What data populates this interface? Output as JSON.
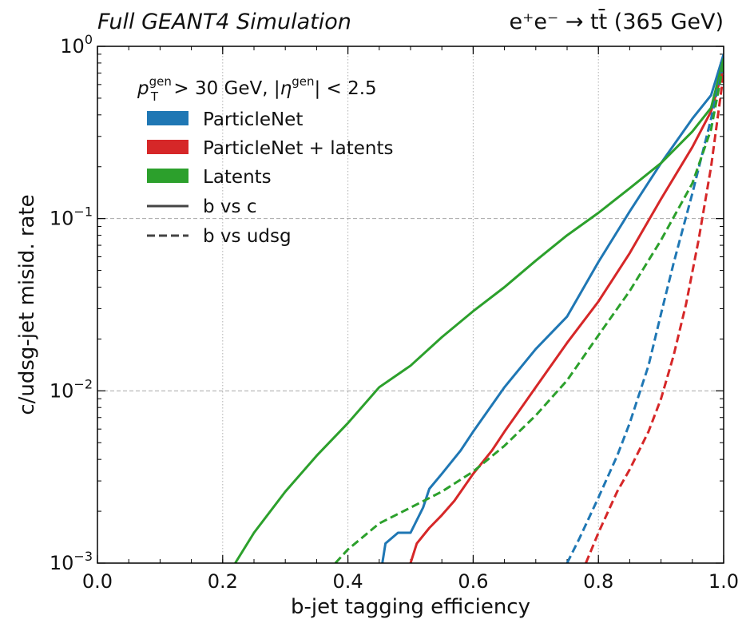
{
  "header": {
    "simulation": "Full GEANT4 Simulation",
    "process": "e⁺e⁻ → tt̄ (365 GeV)"
  },
  "chart_data": {
    "type": "line",
    "xlabel": "b-jet tagging efficiency",
    "ylabel": "c/udsg-jet misid. rate",
    "xlim": [
      0.0,
      1.0
    ],
    "ylim": [
      0.001,
      1.0
    ],
    "yscale": "log",
    "xticks": [
      "0.0",
      "0.2",
      "0.4",
      "0.6",
      "0.8",
      "1.0"
    ],
    "yticks": [
      {
        "value": 0.001,
        "base": "10",
        "exp": "−3"
      },
      {
        "value": 0.01,
        "base": "10",
        "exp": "−2"
      },
      {
        "value": 0.1,
        "base": "10",
        "exp": "−1"
      },
      {
        "value": 1,
        "base": "10",
        "exp": "0"
      }
    ],
    "grid": true,
    "legend": {
      "placement": "top-left",
      "cut_label": "p_T^gen > 30 GeV, |η^gen| < 2.5",
      "models": [
        {
          "name": "ParticleNet",
          "color": "#1f77b4"
        },
        {
          "name": "ParticleNet + latents",
          "color": "#d62728"
        },
        {
          "name": "Latents",
          "color": "#2ca02c"
        }
      ],
      "styles": [
        {
          "name": "b vs c",
          "dash": "solid"
        },
        {
          "name": "b vs udsg",
          "dash": "dashed"
        }
      ]
    },
    "series": [
      {
        "name": "ParticleNet b vs c",
        "color": "#1f77b4",
        "dash": "solid",
        "x": [
          0.455,
          0.46,
          0.48,
          0.5,
          0.52,
          0.53,
          0.55,
          0.58,
          0.6,
          0.65,
          0.7,
          0.75,
          0.8,
          0.85,
          0.9,
          0.95,
          0.98,
          1.0
        ],
        "y": [
          0.001,
          0.0013,
          0.0015,
          0.0015,
          0.0021,
          0.0027,
          0.0033,
          0.0045,
          0.0058,
          0.0105,
          0.0175,
          0.027,
          0.056,
          0.11,
          0.21,
          0.38,
          0.52,
          0.9
        ]
      },
      {
        "name": "ParticleNet + latents b vs c",
        "color": "#d62728",
        "dash": "solid",
        "x": [
          0.5,
          0.51,
          0.53,
          0.55,
          0.57,
          0.6,
          0.63,
          0.65,
          0.7,
          0.75,
          0.8,
          0.85,
          0.9,
          0.95,
          0.98,
          1.0
        ],
        "y": [
          0.001,
          0.0013,
          0.0016,
          0.0019,
          0.0023,
          0.0033,
          0.0045,
          0.0058,
          0.0105,
          0.019,
          0.033,
          0.063,
          0.13,
          0.26,
          0.42,
          0.75
        ]
      },
      {
        "name": "Latents b vs c",
        "color": "#2ca02c",
        "dash": "solid",
        "x": [
          0.22,
          0.25,
          0.3,
          0.35,
          0.4,
          0.45,
          0.5,
          0.55,
          0.6,
          0.65,
          0.7,
          0.75,
          0.8,
          0.85,
          0.9,
          0.95,
          0.98,
          1.0
        ],
        "y": [
          0.001,
          0.0015,
          0.0026,
          0.0042,
          0.0065,
          0.0105,
          0.014,
          0.0205,
          0.029,
          0.04,
          0.057,
          0.08,
          0.108,
          0.15,
          0.21,
          0.32,
          0.44,
          0.85
        ]
      },
      {
        "name": "ParticleNet b vs udsg",
        "color": "#1f77b4",
        "dash": "dashed",
        "x": [
          0.75,
          0.77,
          0.8,
          0.83,
          0.85,
          0.88,
          0.9,
          0.92,
          0.95,
          0.98,
          1.0
        ],
        "y": [
          0.001,
          0.0014,
          0.0024,
          0.0042,
          0.0065,
          0.014,
          0.028,
          0.055,
          0.14,
          0.38,
          0.8
        ]
      },
      {
        "name": "ParticleNet + latents b vs udsg",
        "color": "#d62728",
        "dash": "dashed",
        "x": [
          0.78,
          0.8,
          0.83,
          0.85,
          0.88,
          0.9,
          0.92,
          0.94,
          0.96,
          0.98,
          1.0
        ],
        "y": [
          0.001,
          0.0015,
          0.0026,
          0.0035,
          0.0058,
          0.009,
          0.016,
          0.032,
          0.075,
          0.2,
          0.7
        ]
      },
      {
        "name": "Latents b vs udsg",
        "color": "#2ca02c",
        "dash": "dashed",
        "x": [
          0.38,
          0.4,
          0.45,
          0.5,
          0.55,
          0.6,
          0.65,
          0.7,
          0.75,
          0.8,
          0.85,
          0.9,
          0.95,
          0.98,
          1.0
        ],
        "y": [
          0.001,
          0.0012,
          0.0017,
          0.0021,
          0.0026,
          0.0034,
          0.0048,
          0.0072,
          0.0115,
          0.021,
          0.038,
          0.075,
          0.16,
          0.33,
          0.8
        ]
      }
    ]
  }
}
